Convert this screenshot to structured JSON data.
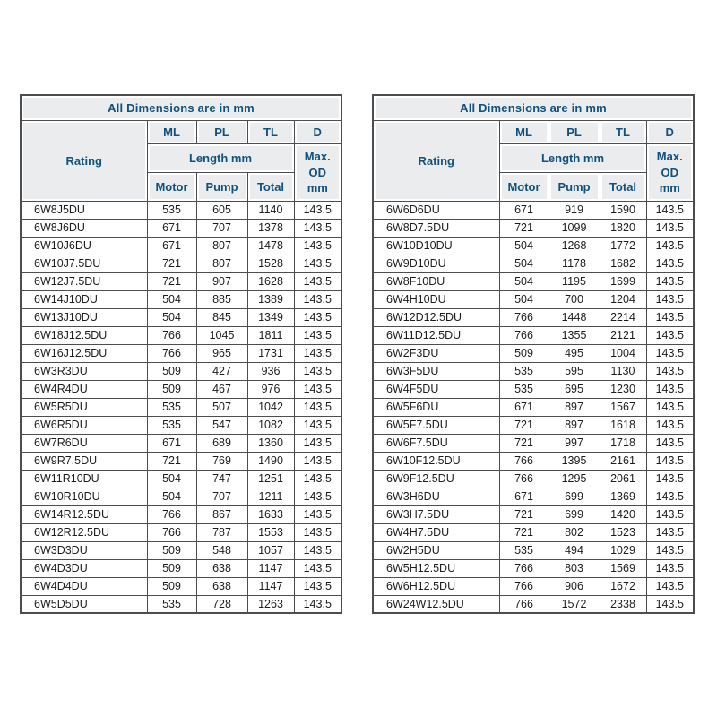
{
  "colors": {
    "page_bg": "#ffffff",
    "header_text": "#11517d",
    "header_bg": "#ebeced",
    "border": "#4d4d4d",
    "data_text": "#1c1c1c"
  },
  "tables": [
    {
      "caption": "All Dimensions are in mm",
      "header": {
        "rating": "Rating",
        "ml": "ML",
        "pl": "PL",
        "tl": "TL",
        "d": "D",
        "length": "Length mm",
        "max_od": "Max.\nOD\nmm",
        "motor": "Motor",
        "pump": "Pump",
        "total": "Total"
      },
      "rows": [
        [
          "6W8J5DU",
          "535",
          "605",
          "1140",
          "143.5"
        ],
        [
          "6W8J6DU",
          "671",
          "707",
          "1378",
          "143.5"
        ],
        [
          "6W10J6DU",
          "671",
          "807",
          "1478",
          "143.5"
        ],
        [
          "6W10J7.5DU",
          "721",
          "807",
          "1528",
          "143.5"
        ],
        [
          "6W12J7.5DU",
          "721",
          "907",
          "1628",
          "143.5"
        ],
        [
          "6W14J10DU",
          "504",
          "885",
          "1389",
          "143.5"
        ],
        [
          "6W13J10DU",
          "504",
          "845",
          "1349",
          "143.5"
        ],
        [
          "6W18J12.5DU",
          "766",
          "1045",
          "1811",
          "143.5"
        ],
        [
          "6W16J12.5DU",
          "766",
          "965",
          "1731",
          "143.5"
        ],
        [
          "6W3R3DU",
          "509",
          "427",
          "936",
          "143.5"
        ],
        [
          "6W4R4DU",
          "509",
          "467",
          "976",
          "143.5"
        ],
        [
          "6W5R5DU",
          "535",
          "507",
          "1042",
          "143.5"
        ],
        [
          "6W6R5DU",
          "535",
          "547",
          "1082",
          "143.5"
        ],
        [
          "6W7R6DU",
          "671",
          "689",
          "1360",
          "143.5"
        ],
        [
          "6W9R7.5DU",
          "721",
          "769",
          "1490",
          "143.5"
        ],
        [
          "6W11R10DU",
          "504",
          "747",
          "1251",
          "143.5"
        ],
        [
          "6W10R10DU",
          "504",
          "707",
          "1211",
          "143.5"
        ],
        [
          "6W14R12.5DU",
          "766",
          "867",
          "1633",
          "143.5"
        ],
        [
          "6W12R12.5DU",
          "766",
          "787",
          "1553",
          "143.5"
        ],
        [
          "6W3D3DU",
          "509",
          "548",
          "1057",
          "143.5"
        ],
        [
          "6W4D3DU",
          "509",
          "638",
          "1147",
          "143.5"
        ],
        [
          "6W4D4DU",
          "509",
          "638",
          "1147",
          "143.5"
        ],
        [
          "6W5D5DU",
          "535",
          "728",
          "1263",
          "143.5"
        ]
      ]
    },
    {
      "caption": "All Dimensions are in mm",
      "header": {
        "rating": "Rating",
        "ml": "ML",
        "pl": "PL",
        "tl": "TL",
        "d": "D",
        "length": "Length mm",
        "max_od": "Max.\nOD\nmm",
        "motor": "Motor",
        "pump": "Pump",
        "total": "Total"
      },
      "rows": [
        [
          "6W6D6DU",
          "671",
          "919",
          "1590",
          "143.5"
        ],
        [
          "6W8D7.5DU",
          "721",
          "1099",
          "1820",
          "143.5"
        ],
        [
          "6W10D10DU",
          "504",
          "1268",
          "1772",
          "143.5"
        ],
        [
          "6W9D10DU",
          "504",
          "1178",
          "1682",
          "143.5"
        ],
        [
          "6W8F10DU",
          "504",
          "1195",
          "1699",
          "143.5"
        ],
        [
          "6W4H10DU",
          "504",
          "700",
          "1204",
          "143.5"
        ],
        [
          "6W12D12.5DU",
          "766",
          "1448",
          "2214",
          "143.5"
        ],
        [
          "6W11D12.5DU",
          "766",
          "1355",
          "2121",
          "143.5"
        ],
        [
          "6W2F3DU",
          "509",
          "495",
          "1004",
          "143.5"
        ],
        [
          "6W3F5DU",
          "535",
          "595",
          "1130",
          "143.5"
        ],
        [
          "6W4F5DU",
          "535",
          "695",
          "1230",
          "143.5"
        ],
        [
          "6W5F6DU",
          "671",
          "897",
          "1567",
          "143.5"
        ],
        [
          "6W5F7.5DU",
          "721",
          "897",
          "1618",
          "143.5"
        ],
        [
          "6W6F7.5DU",
          "721",
          "997",
          "1718",
          "143.5"
        ],
        [
          "6W10F12.5DU",
          "766",
          "1395",
          "2161",
          "143.5"
        ],
        [
          "6W9F12.5DU",
          "766",
          "1295",
          "2061",
          "143.5"
        ],
        [
          "6W3H6DU",
          "671",
          "699",
          "1369",
          "143.5"
        ],
        [
          "6W3H7.5DU",
          "721",
          "699",
          "1420",
          "143.5"
        ],
        [
          "6W4H7.5DU",
          "721",
          "802",
          "1523",
          "143.5"
        ],
        [
          "6W2H5DU",
          "535",
          "494",
          "1029",
          "143.5"
        ],
        [
          "6W5H12.5DU",
          "766",
          "803",
          "1569",
          "143.5"
        ],
        [
          "6W6H12.5DU",
          "766",
          "906",
          "1672",
          "143.5"
        ],
        [
          "6W24W12.5DU",
          "766",
          "1572",
          "2338",
          "143.5"
        ]
      ]
    }
  ]
}
